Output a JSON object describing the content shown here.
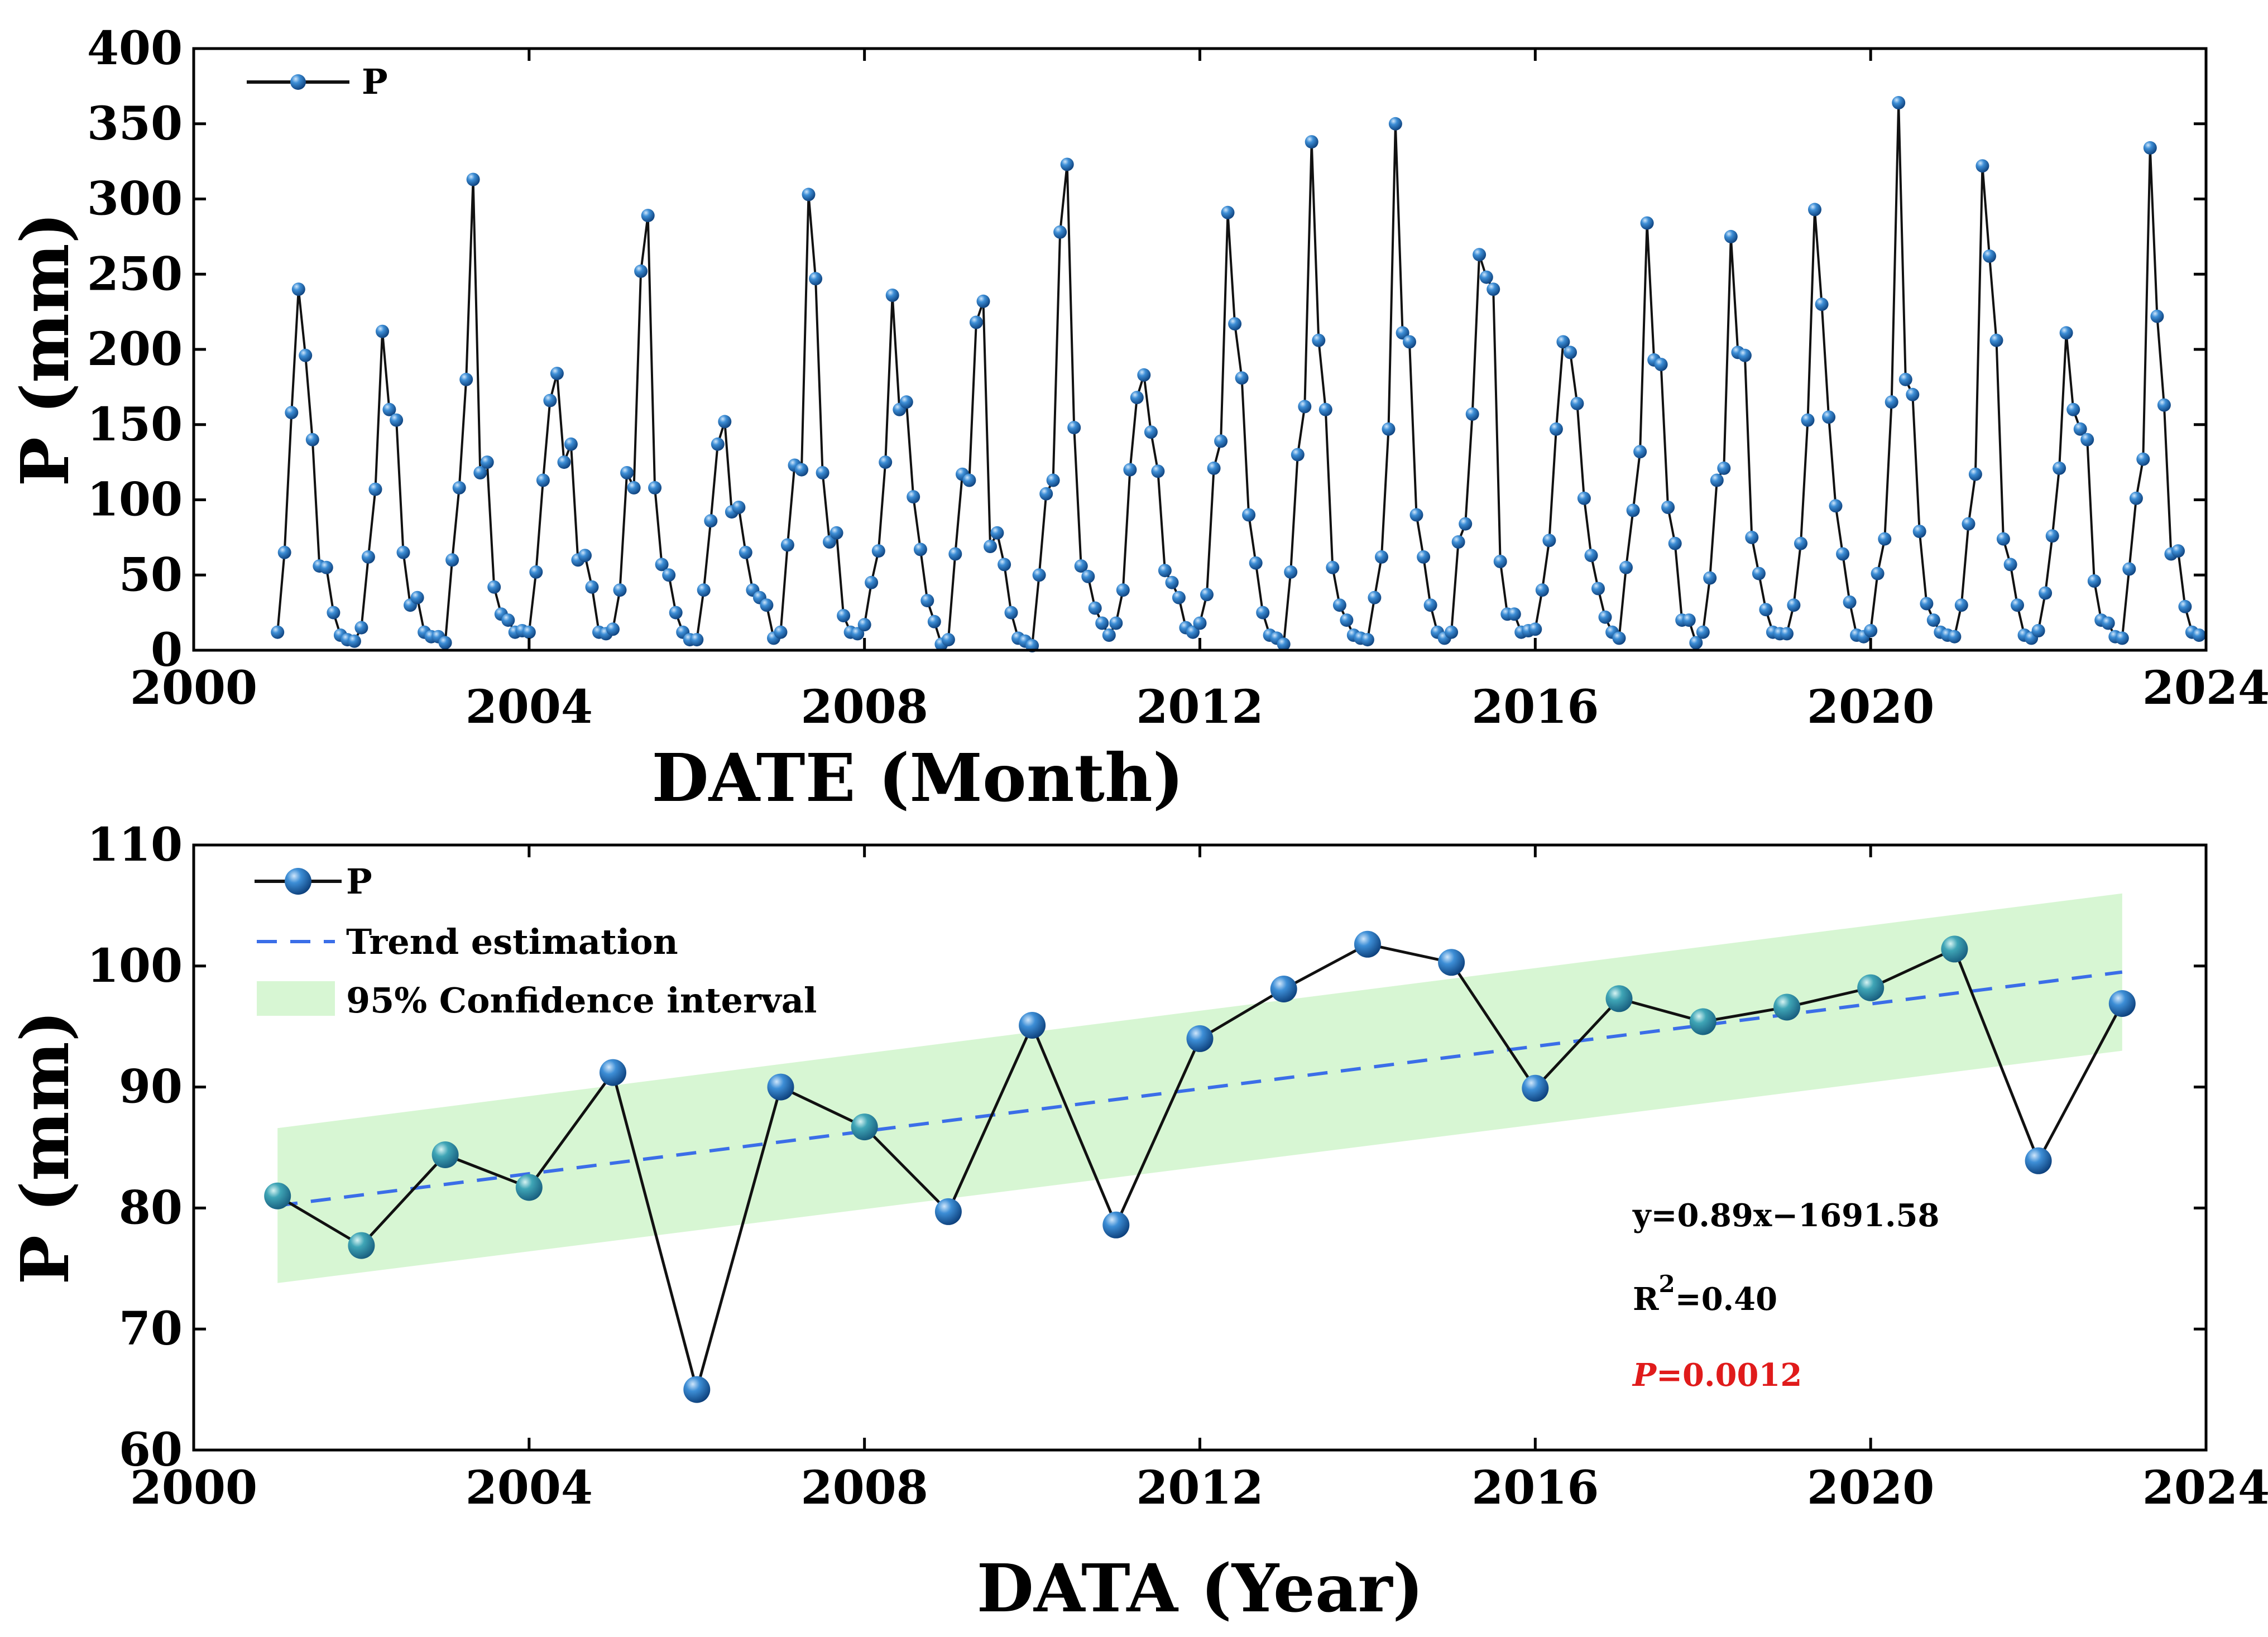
{
  "colors": {
    "line": "#111111",
    "marker": "#1f6fb2",
    "marker_light": "#2e95a8",
    "trend": "#3b6ee8",
    "ci_band": "#d7f6d3",
    "p_value": "#e01b1b"
  },
  "chart_data": [
    {
      "id": "monthly",
      "type": "line",
      "title": "",
      "xlabel": "DATE (Month)",
      "ylabel": "P (mm)",
      "xlim": [
        2000,
        2024
      ],
      "ylim": [
        0,
        400
      ],
      "xticks": [
        2000,
        2004,
        2008,
        2012,
        2016,
        2020,
        2024
      ],
      "yticks": [
        0,
        50,
        100,
        150,
        200,
        250,
        300,
        350,
        400
      ],
      "legend": {
        "position": "top-left",
        "label": "P"
      },
      "series": [
        {
          "name": "P",
          "x": [
            2001.0,
            2001.083,
            2001.167,
            2001.25,
            2001.333,
            2001.417,
            2001.5,
            2001.583,
            2001.667,
            2001.75,
            2001.833,
            2001.917,
            2002.0,
            2002.083,
            2002.167,
            2002.25,
            2002.333,
            2002.417,
            2002.5,
            2002.583,
            2002.667,
            2002.75,
            2002.833,
            2002.917,
            2003.0,
            2003.083,
            2003.167,
            2003.25,
            2003.333,
            2003.417,
            2003.5,
            2003.583,
            2003.667,
            2003.75,
            2003.833,
            2003.917,
            2004.0,
            2004.083,
            2004.167,
            2004.25,
            2004.333,
            2004.417,
            2004.5,
            2004.583,
            2004.667,
            2004.75,
            2004.833,
            2004.917,
            2005.0,
            2005.083,
            2005.167,
            2005.25,
            2005.333,
            2005.417,
            2005.5,
            2005.583,
            2005.667,
            2005.75,
            2005.833,
            2005.917,
            2006.0,
            2006.083,
            2006.167,
            2006.25,
            2006.333,
            2006.417,
            2006.5,
            2006.583,
            2006.667,
            2006.75,
            2006.833,
            2006.917,
            2007.0,
            2007.083,
            2007.167,
            2007.25,
            2007.333,
            2007.417,
            2007.5,
            2007.583,
            2007.667,
            2007.75,
            2007.833,
            2007.917,
            2008.0,
            2008.083,
            2008.167,
            2008.25,
            2008.333,
            2008.417,
            2008.5,
            2008.583,
            2008.667,
            2008.75,
            2008.833,
            2008.917,
            2009.0,
            2009.083,
            2009.167,
            2009.25,
            2009.333,
            2009.417,
            2009.5,
            2009.583,
            2009.667,
            2009.75,
            2009.833,
            2009.917,
            2010.0,
            2010.083,
            2010.167,
            2010.25,
            2010.333,
            2010.417,
            2010.5,
            2010.583,
            2010.667,
            2010.75,
            2010.833,
            2010.917,
            2011.0,
            2011.083,
            2011.167,
            2011.25,
            2011.333,
            2011.417,
            2011.5,
            2011.583,
            2011.667,
            2011.75,
            2011.833,
            2011.917,
            2012.0,
            2012.083,
            2012.167,
            2012.25,
            2012.333,
            2012.417,
            2012.5,
            2012.583,
            2012.667,
            2012.75,
            2012.833,
            2012.917,
            2013.0,
            2013.083,
            2013.167,
            2013.25,
            2013.333,
            2013.417,
            2013.5,
            2013.583,
            2013.667,
            2013.75,
            2013.833,
            2013.917,
            2014.0,
            2014.083,
            2014.167,
            2014.25,
            2014.333,
            2014.417,
            2014.5,
            2014.583,
            2014.667,
            2014.75,
            2014.833,
            2014.917,
            2015.0,
            2015.083,
            2015.167,
            2015.25,
            2015.333,
            2015.417,
            2015.5,
            2015.583,
            2015.667,
            2015.75,
            2015.833,
            2015.917,
            2016.0,
            2016.083,
            2016.167,
            2016.25,
            2016.333,
            2016.417,
            2016.5,
            2016.583,
            2016.667,
            2016.75,
            2016.833,
            2016.917,
            2017.0,
            2017.083,
            2017.167,
            2017.25,
            2017.333,
            2017.417,
            2017.5,
            2017.583,
            2017.667,
            2017.75,
            2017.833,
            2017.917,
            2018.0,
            2018.083,
            2018.167,
            2018.25,
            2018.333,
            2018.417,
            2018.5,
            2018.583,
            2018.667,
            2018.75,
            2018.833,
            2018.917,
            2019.0,
            2019.083,
            2019.167,
            2019.25,
            2019.333,
            2019.417,
            2019.5,
            2019.583,
            2019.667,
            2019.75,
            2019.833,
            2019.917,
            2020.0,
            2020.083,
            2020.167,
            2020.25,
            2020.333,
            2020.417,
            2020.5,
            2020.583,
            2020.667,
            2020.75,
            2020.833,
            2020.917,
            2021.0,
            2021.083,
            2021.167,
            2021.25,
            2021.333,
            2021.417,
            2021.5,
            2021.583,
            2021.667,
            2021.75,
            2021.833,
            2021.917,
            2022.0,
            2022.083,
            2022.167,
            2022.25,
            2022.333,
            2022.417,
            2022.5,
            2022.583,
            2022.667,
            2022.75,
            2022.833,
            2022.917,
            2023.0,
            2023.083,
            2023.167,
            2023.25,
            2023.333,
            2023.417,
            2023.5,
            2023.583,
            2023.667,
            2023.75,
            2023.833,
            2023.917
          ],
          "values": [
            12,
            65,
            158,
            240,
            196,
            140,
            56,
            55,
            25,
            10,
            7,
            6,
            15,
            62,
            107,
            212,
            160,
            153,
            65,
            30,
            35,
            12,
            9,
            9,
            5,
            60,
            108,
            180,
            313,
            118,
            125,
            42,
            24,
            20,
            12,
            13,
            12,
            52,
            113,
            166,
            184,
            125,
            137,
            60,
            63,
            42,
            12,
            11,
            14,
            40,
            118,
            108,
            252,
            289,
            108,
            57,
            50,
            25,
            12,
            7,
            7,
            40,
            86,
            137,
            152,
            92,
            95,
            65,
            40,
            35,
            30,
            8,
            12,
            70,
            123,
            120,
            303,
            247,
            118,
            72,
            78,
            23,
            12,
            11,
            17,
            45,
            66,
            125,
            236,
            160,
            165,
            102,
            67,
            33,
            19,
            4,
            7,
            64,
            117,
            113,
            218,
            232,
            69,
            78,
            57,
            25,
            8,
            6,
            3,
            50,
            104,
            113,
            278,
            323,
            148,
            56,
            49,
            28,
            18,
            10,
            18,
            40,
            120,
            168,
            183,
            145,
            119,
            53,
            45,
            35,
            15,
            12,
            18,
            37,
            121,
            139,
            291,
            217,
            181,
            90,
            58,
            25,
            10,
            8,
            4,
            52,
            130,
            162,
            338,
            206,
            160,
            55,
            30,
            20,
            10,
            8,
            7,
            35,
            62,
            147,
            350,
            211,
            205,
            90,
            62,
            30,
            12,
            8,
            12,
            72,
            84,
            157,
            263,
            248,
            240,
            59,
            24,
            24,
            12,
            13,
            14,
            40,
            73,
            147,
            205,
            198,
            164,
            101,
            63,
            41,
            22,
            12,
            8,
            55,
            93,
            132,
            284,
            193,
            190,
            95,
            71,
            20,
            20,
            5,
            12,
            48,
            113,
            121,
            275,
            198,
            196,
            75,
            51,
            27,
            12,
            11,
            11,
            30,
            71,
            153,
            293,
            230,
            155,
            96,
            64,
            32,
            10,
            9,
            13,
            51,
            74,
            165,
            364,
            180,
            170,
            79,
            31,
            20,
            12,
            10,
            9,
            30,
            84,
            117,
            322,
            262,
            206,
            74,
            57,
            30,
            10,
            8,
            13,
            38,
            76,
            121,
            211,
            160,
            147,
            140,
            46,
            20,
            18,
            9,
            8,
            54,
            101,
            127,
            334,
            222,
            163,
            64,
            66,
            29,
            12,
            10
          ]
        }
      ]
    },
    {
      "id": "annual",
      "type": "line",
      "title": "",
      "xlabel": "DATA (Year)",
      "ylabel": "P (mm)",
      "xlim": [
        2000,
        2024
      ],
      "ylim": [
        60,
        110
      ],
      "xticks": [
        2000,
        2004,
        2008,
        2012,
        2016,
        2020,
        2024
      ],
      "yticks": [
        60,
        70,
        80,
        90,
        100,
        110
      ],
      "legend": {
        "position": "top-left",
        "entries": [
          "P",
          "Trend estimation",
          "95% Confidence interval"
        ]
      },
      "series": [
        {
          "name": "P",
          "x": [
            2001,
            2002,
            2003,
            2004,
            2005,
            2006,
            2007,
            2008,
            2009,
            2010,
            2011,
            2012,
            2013,
            2014,
            2015,
            2016,
            2017,
            2018,
            2019,
            2020,
            2021,
            2022,
            2023
          ],
          "values": [
            81.0,
            76.9,
            84.4,
            81.7,
            91.2,
            65.0,
            90.0,
            86.7,
            79.7,
            95.1,
            78.6,
            94.0,
            98.1,
            101.8,
            100.3,
            89.9,
            97.3,
            95.4,
            96.6,
            98.2,
            101.4,
            83.9,
            96.9
          ],
          "marker_shade": [
            "light",
            "light",
            "light",
            "light",
            "dark",
            "dark",
            "dark",
            "light",
            "dark",
            "dark",
            "dark",
            "dark",
            "dark",
            "dark",
            "dark",
            "dark",
            "light",
            "light",
            "light",
            "light",
            "light",
            "dark",
            "dark"
          ]
        },
        {
          "name": "Trend estimation",
          "style": "dashed",
          "x": [
            2001,
            2023
          ],
          "values": [
            80.2,
            99.5
          ]
        }
      ],
      "confidence_band": {
        "name": "95% Confidence interval",
        "x": [
          2001,
          2023
        ],
        "lower": [
          73.8,
          93.0
        ],
        "upper": [
          86.6,
          106.0
        ]
      },
      "annotations": {
        "equation": "y=0.89x−1691.58",
        "r2_prefix": "R",
        "r2_exponent": "2",
        "r2_value": "=0.40",
        "p_symbol": "P",
        "p_value": "=0.0012"
      }
    }
  ]
}
